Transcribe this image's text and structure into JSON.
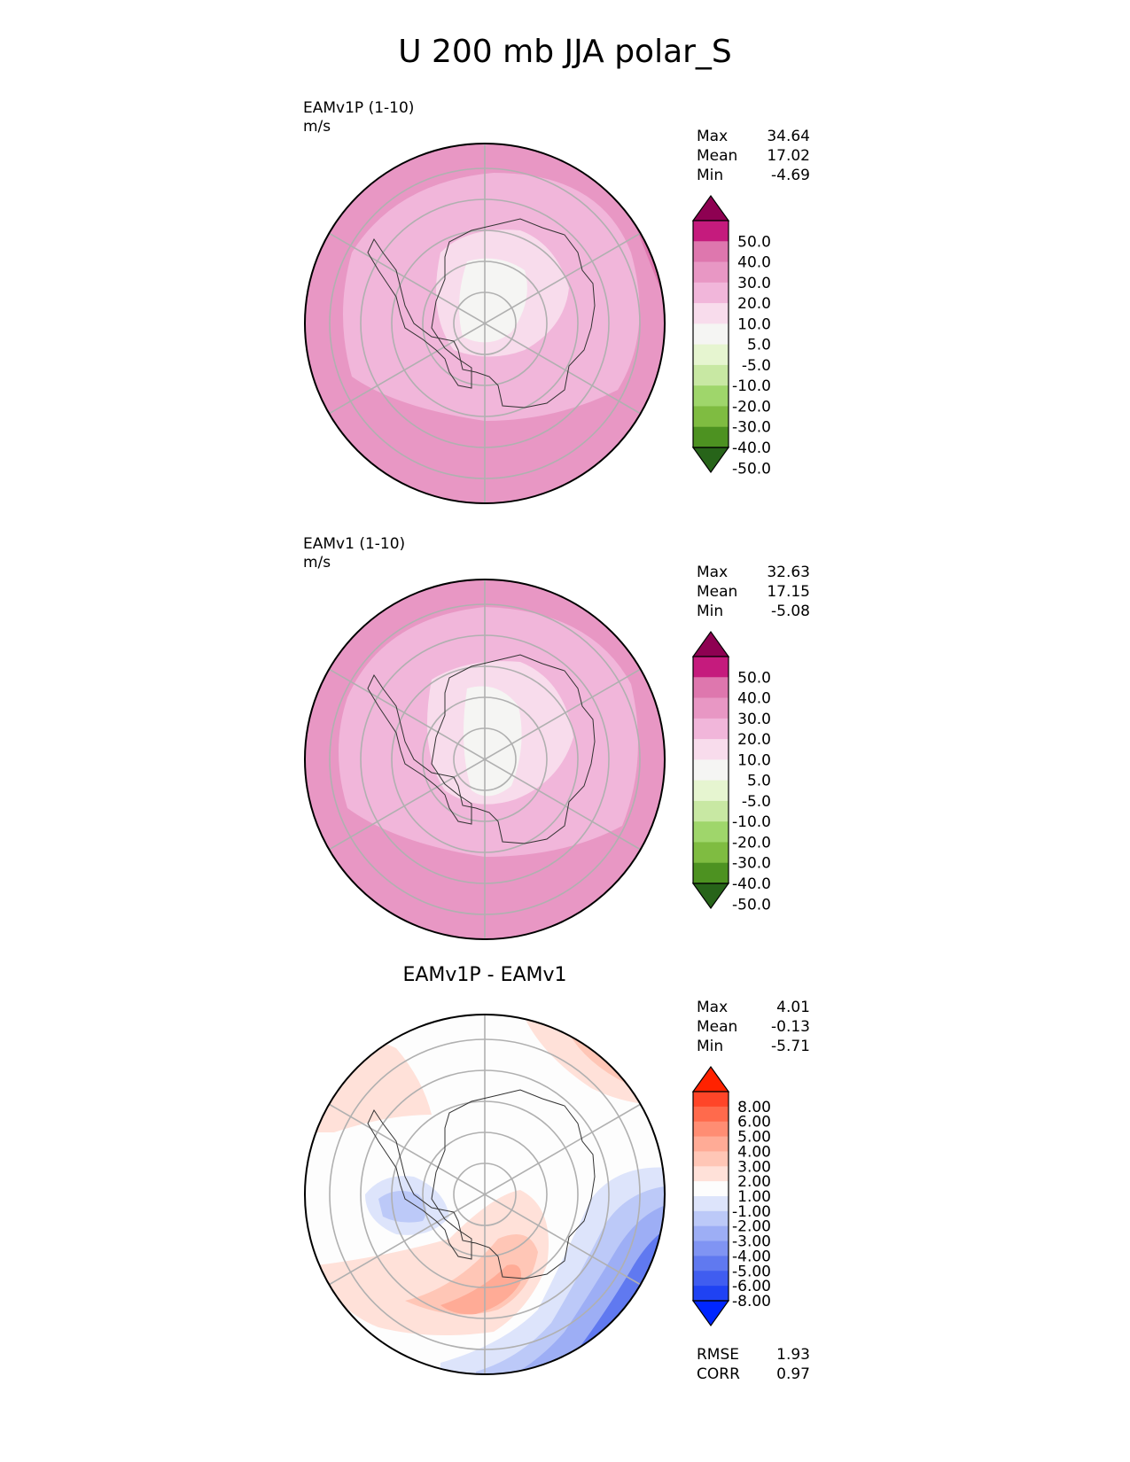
{
  "title": "U 200 mb JJA polar_S",
  "colors": {
    "seq": [
      "#8e0152",
      "#c51b7d",
      "#de77ae",
      "#e897c4",
      "#f1b6da",
      "#f8dcec",
      "#f5f5f3",
      "#e6f5d0",
      "#c8e8a3",
      "#9fd66b",
      "#7fbc41",
      "#4d9221",
      "#276419"
    ],
    "diff": [
      "#ff2200",
      "#ff4528",
      "#ff6a4c",
      "#ff8d73",
      "#ffab96",
      "#ffc6b6",
      "#ffe1d9",
      "#fdfdfd",
      "#dde4fb",
      "#bcc9f8",
      "#9daef5",
      "#8094f3",
      "#6079f0",
      "#405df0",
      "#1f42f3",
      "#0026ff"
    ]
  },
  "chart_data": [
    {
      "type": "heatmap",
      "projection": "polar_S",
      "label": "EAMv1P (1-10)",
      "units": "m/s",
      "stats": [
        {
          "name": "Max",
          "value": "34.64"
        },
        {
          "name": "Mean",
          "value": "17.02"
        },
        {
          "name": "Min",
          "value": "-4.69"
        }
      ],
      "colorbar_ticks": [
        "50.0",
        "40.0",
        "30.0",
        "20.0",
        "10.0",
        "5.0",
        "-5.0",
        "-10.0",
        "-20.0",
        "-30.0",
        "-40.0",
        "-50.0"
      ],
      "contour_bands": [
        {
          "value": 25,
          "color": "#e897c4"
        },
        {
          "value": 15,
          "color": "#f1b6da"
        },
        {
          "value": 7,
          "color": "#f8dcec"
        },
        {
          "value": 0,
          "color": "#f5f5f3"
        },
        {
          "value": 32,
          "color": "#de77ae"
        }
      ]
    },
    {
      "type": "heatmap",
      "projection": "polar_S",
      "label": "EAMv1 (1-10)",
      "units": "m/s",
      "stats": [
        {
          "name": "Max",
          "value": "32.63"
        },
        {
          "name": "Mean",
          "value": "17.15"
        },
        {
          "name": "Min",
          "value": "-5.08"
        }
      ],
      "colorbar_ticks": [
        "50.0",
        "40.0",
        "30.0",
        "20.0",
        "10.0",
        "5.0",
        "-5.0",
        "-10.0",
        "-20.0",
        "-30.0",
        "-40.0",
        "-50.0"
      ],
      "contour_bands": [
        {
          "value": 25,
          "color": "#e897c4"
        },
        {
          "value": 15,
          "color": "#f1b6da"
        },
        {
          "value": 7,
          "color": "#f8dcec"
        },
        {
          "value": 0,
          "color": "#f5f5f3"
        },
        {
          "value": 32,
          "color": "#de77ae"
        }
      ]
    },
    {
      "type": "heatmap",
      "projection": "polar_S",
      "title": "EAMv1P - EAMv1",
      "stats": [
        {
          "name": "Max",
          "value": "4.01"
        },
        {
          "name": "Mean",
          "value": "-0.13"
        },
        {
          "name": "Min",
          "value": "-5.71"
        }
      ],
      "metrics": [
        {
          "name": "RMSE",
          "value": "1.93"
        },
        {
          "name": "CORR",
          "value": "0.97"
        }
      ],
      "colorbar_ticks": [
        "8.00",
        "6.00",
        "5.00",
        "4.00",
        "3.00",
        "2.00",
        "1.00",
        "-1.00",
        "-2.00",
        "-3.00",
        "-4.00",
        "-5.00",
        "-6.00",
        "-8.00"
      ],
      "contour_bands": [
        {
          "value": 1.5,
          "color": "#ffe1d9"
        },
        {
          "value": 2.5,
          "color": "#ffc6b6"
        },
        {
          "value": 3.5,
          "color": "#ffab96"
        },
        {
          "value": -1.5,
          "color": "#dde4fb"
        },
        {
          "value": -2.5,
          "color": "#bcc9f8"
        },
        {
          "value": -3.5,
          "color": "#9daef5"
        },
        {
          "value": -4.5,
          "color": "#6079f0"
        },
        {
          "value": -5.5,
          "color": "#405df0"
        }
      ]
    }
  ]
}
